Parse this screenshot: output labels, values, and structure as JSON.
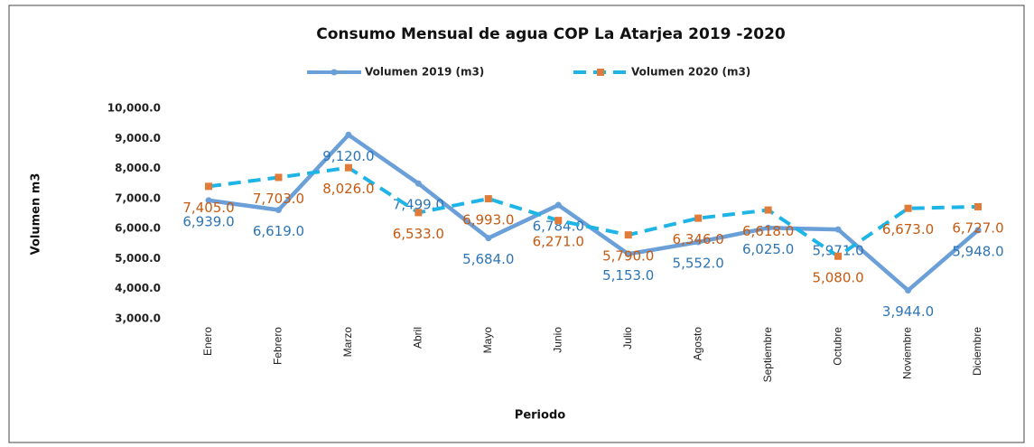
{
  "chart_data": {
    "type": "line",
    "title": "Consumo Mensual de agua COP La Atarjea 2019  -2020",
    "x_label": "Periodo",
    "y_label": "Volumen m3",
    "categories": [
      "Enero",
      "Febrero",
      "Marzo",
      "Abril",
      "Mayo",
      "Junio",
      "Julio",
      "Agosto",
      "Septiembre",
      "Octubre",
      "Noviembre",
      "Diciembre"
    ],
    "series": [
      {
        "name": "Volumen 2019 (m3)",
        "color": "#6a9fd8",
        "label_color": "#2e75b6",
        "dashed": false,
        "values": [
          6939,
          6619,
          9120,
          7499,
          5684,
          6784,
          5153,
          5552,
          6025,
          5971,
          3944,
          5948
        ],
        "value_labels": [
          "6,939.0",
          "6,619.0",
          "9,120.0",
          "7,499.0",
          "5,684.0",
          "6,784.0",
          "5,153.0",
          "5,552.0",
          "6,025.0",
          "5,971.0",
          "3,944.0",
          "5,948.0"
        ]
      },
      {
        "name": "Volumen 2020 (m3)",
        "color": "#1fb4e6",
        "marker_color": "#e07b39",
        "label_color": "#c55a11",
        "dashed": true,
        "values": [
          7405,
          7703,
          8026,
          6533,
          6993,
          6271,
          5790,
          6346,
          6618,
          5080,
          6673,
          6727
        ],
        "value_labels": [
          "7,405.0",
          "7,703.0",
          "8,026.0",
          "6,533.0",
          "6,993.0",
          "6,271.0",
          "5,790.0",
          "6,346.0",
          "6,618.0",
          "5,080.0",
          "6,673.0",
          "6,727.0"
        ]
      }
    ],
    "ylim": [
      3000,
      10000
    ],
    "yticks": [
      {
        "value": 3000,
        "label": "3,000.0"
      },
      {
        "value": 4000,
        "label": "4,000.0"
      },
      {
        "value": 5000,
        "label": "5,000.0"
      },
      {
        "value": 6000,
        "label": "6,000.0"
      },
      {
        "value": 7000,
        "label": "7,000.0"
      },
      {
        "value": 8000,
        "label": "8,000.0"
      },
      {
        "value": 9000,
        "label": "9,000.0"
      },
      {
        "value": 10000,
        "label": "10,000.0"
      }
    ],
    "legend": "top",
    "grid": false
  }
}
